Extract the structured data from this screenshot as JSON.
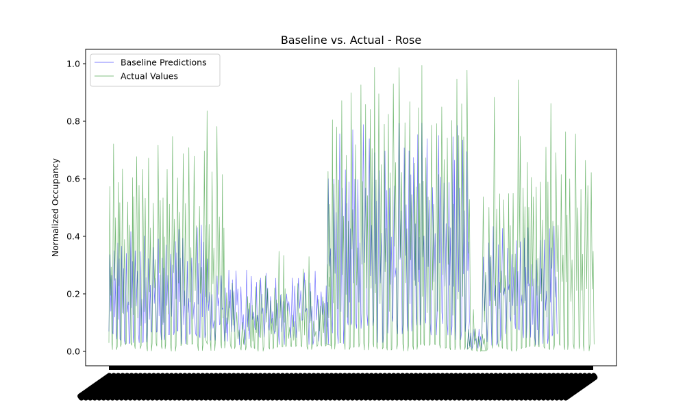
{
  "chart_data": {
    "type": "line",
    "title": "Baseline vs. Actual - Rose",
    "xlabel": "",
    "ylabel": "Normalized Occupancy",
    "ylim": [
      -0.05,
      1.05
    ],
    "yticks": [
      0.0,
      0.2,
      0.4,
      0.6,
      0.8,
      1.0
    ],
    "ytick_labels": [
      "0.0",
      "0.2",
      "0.4",
      "0.6",
      "0.8",
      "1.0"
    ],
    "grid": false,
    "legend_position": "upper-left",
    "x_ticks_unreadable": true,
    "series": [
      {
        "name": "Baseline Predictions",
        "color": "#0000ff",
        "alpha": 0.3,
        "profile": [
          {
            "from": 0.0,
            "to": 0.21,
            "hi": [
              0.3,
              0.45
            ],
            "lo": [
              0.02,
              0.08
            ],
            "period": 7
          },
          {
            "from": 0.21,
            "to": 0.45,
            "hi": [
              0.18,
              0.29
            ],
            "lo": [
              0.02,
              0.12
            ],
            "period": 7
          },
          {
            "from": 0.45,
            "to": 0.74,
            "hi": [
              0.55,
              0.81
            ],
            "lo": [
              0.02,
              0.14
            ],
            "period": 7
          },
          {
            "from": 0.74,
            "to": 0.77,
            "hi": [
              0.06,
              0.13
            ],
            "lo": [
              0.0,
              0.02
            ],
            "period": 7
          },
          {
            "from": 0.77,
            "to": 0.925,
            "hi": [
              0.3,
              0.44
            ],
            "lo": [
              0.02,
              0.12
            ],
            "period": 7
          }
        ]
      },
      {
        "name": "Actual Values",
        "color": "#008000",
        "alpha": 0.35,
        "profile": [
          {
            "from": 0.0,
            "to": 0.2,
            "hi": [
              0.5,
              0.76
            ],
            "lo": [
              0.0,
              0.03
            ],
            "period": 7
          },
          {
            "from": 0.2,
            "to": 0.24,
            "hi": [
              0.6,
              0.86
            ],
            "lo": [
              0.0,
              0.05
            ],
            "period": 7
          },
          {
            "from": 0.24,
            "to": 0.45,
            "hi": [
              0.1,
              0.38
            ],
            "lo": [
              0.0,
              0.03
            ],
            "period": 7
          },
          {
            "from": 0.45,
            "to": 0.74,
            "hi": [
              0.6,
              1.0
            ],
            "lo": [
              0.0,
              0.03
            ],
            "period": 7
          },
          {
            "from": 0.74,
            "to": 0.77,
            "hi": [
              0.04,
              0.16
            ],
            "lo": [
              0.0,
              0.02
            ],
            "period": 7
          },
          {
            "from": 0.77,
            "to": 1.0,
            "hi": [
              0.5,
              1.0
            ],
            "lo": [
              0.0,
              0.03
            ],
            "period": 7
          }
        ]
      }
    ]
  }
}
